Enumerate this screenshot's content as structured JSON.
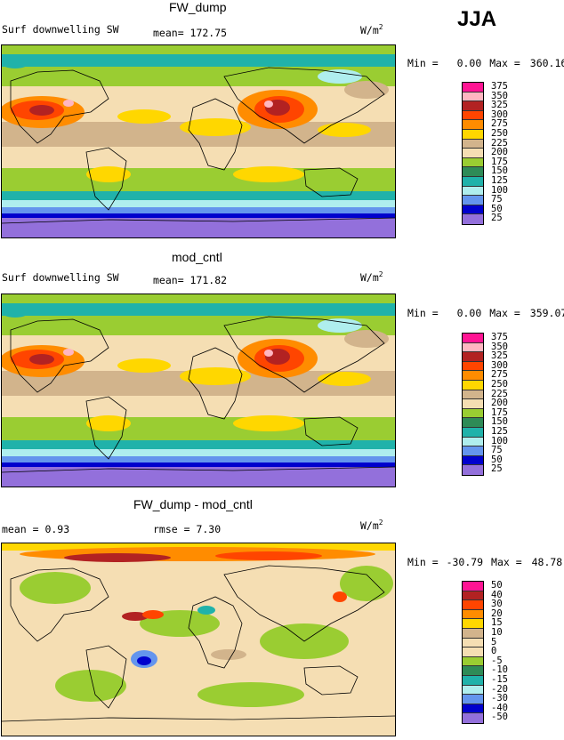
{
  "season": "JJA",
  "panels": [
    {
      "title": "FW_dump",
      "left_label": "Surf downwelling SW",
      "stat_label": "mean= 172.75",
      "stat2_label": "",
      "units": "W/m",
      "units_sup": "2",
      "min_label": "Min =",
      "min_value": "0.00",
      "max_label": "Max =",
      "max_value": "360.16"
    },
    {
      "title": "mod_cntl",
      "left_label": "Surf downwelling SW",
      "stat_label": "mean= 171.82",
      "stat2_label": "",
      "units": "W/m",
      "units_sup": "2",
      "min_label": "Min =",
      "min_value": "0.00",
      "max_label": "Max =",
      "max_value": "359.07"
    },
    {
      "title": "FW_dump - mod_cntl",
      "left_label": "mean =    0.93",
      "stat_label": "rmse =   7.30",
      "stat2_label": "",
      "units": "W/m",
      "units_sup": "2",
      "min_label": "Min =",
      "min_value": "-30.79",
      "max_label": "Max =",
      "max_value": "48.78"
    }
  ],
  "chart_data": [
    {
      "type": "heatmap",
      "title": "FW_dump",
      "variable": "Surf downwelling SW",
      "units": "W/m2",
      "mean": 172.75,
      "min": 0.0,
      "max": 360.16,
      "colorbar_levels": [
        "375",
        "350",
        "325",
        "300",
        "275",
        "250",
        "225",
        "200",
        "175",
        "150",
        "125",
        "100",
        "75",
        "50",
        "25"
      ],
      "colorbar_colors": [
        "#ff1493",
        "#ffb6c1",
        "#b22222",
        "#ff4500",
        "#ff8c00",
        "#ffd700",
        "#d2b48c",
        "#f5deb3",
        "#9acd32",
        "#2e8b57",
        "#20b2aa",
        "#afeeee",
        "#6495ed",
        "#0000cd",
        "#9370db"
      ]
    },
    {
      "type": "heatmap",
      "title": "mod_cntl",
      "variable": "Surf downwelling SW",
      "units": "W/m2",
      "mean": 171.82,
      "min": 0.0,
      "max": 359.07,
      "colorbar_levels": [
        "375",
        "350",
        "325",
        "300",
        "275",
        "250",
        "225",
        "200",
        "175",
        "150",
        "125",
        "100",
        "75",
        "50",
        "25"
      ],
      "colorbar_colors": [
        "#ff1493",
        "#ffb6c1",
        "#b22222",
        "#ff4500",
        "#ff8c00",
        "#ffd700",
        "#d2b48c",
        "#f5deb3",
        "#9acd32",
        "#2e8b57",
        "#20b2aa",
        "#afeeee",
        "#6495ed",
        "#0000cd",
        "#9370db"
      ]
    },
    {
      "type": "heatmap",
      "title": "FW_dump - mod_cntl",
      "units": "W/m2",
      "mean": 0.93,
      "rmse": 7.3,
      "min": -30.79,
      "max": 48.78,
      "colorbar_levels": [
        "50",
        "40",
        "30",
        "20",
        "15",
        "10",
        "5",
        "0",
        "-5",
        "-10",
        "-15",
        "-20",
        "-30",
        "-40",
        "-50"
      ],
      "colorbar_colors": [
        "#ff1493",
        "#b22222",
        "#ff4500",
        "#ff8c00",
        "#ffd700",
        "#d2b48c",
        "#f5deb3",
        "#f5deb3",
        "#9acd32",
        "#2e8b57",
        "#20b2aa",
        "#afeeee",
        "#6495ed",
        "#0000cd",
        "#9370db"
      ]
    }
  ]
}
